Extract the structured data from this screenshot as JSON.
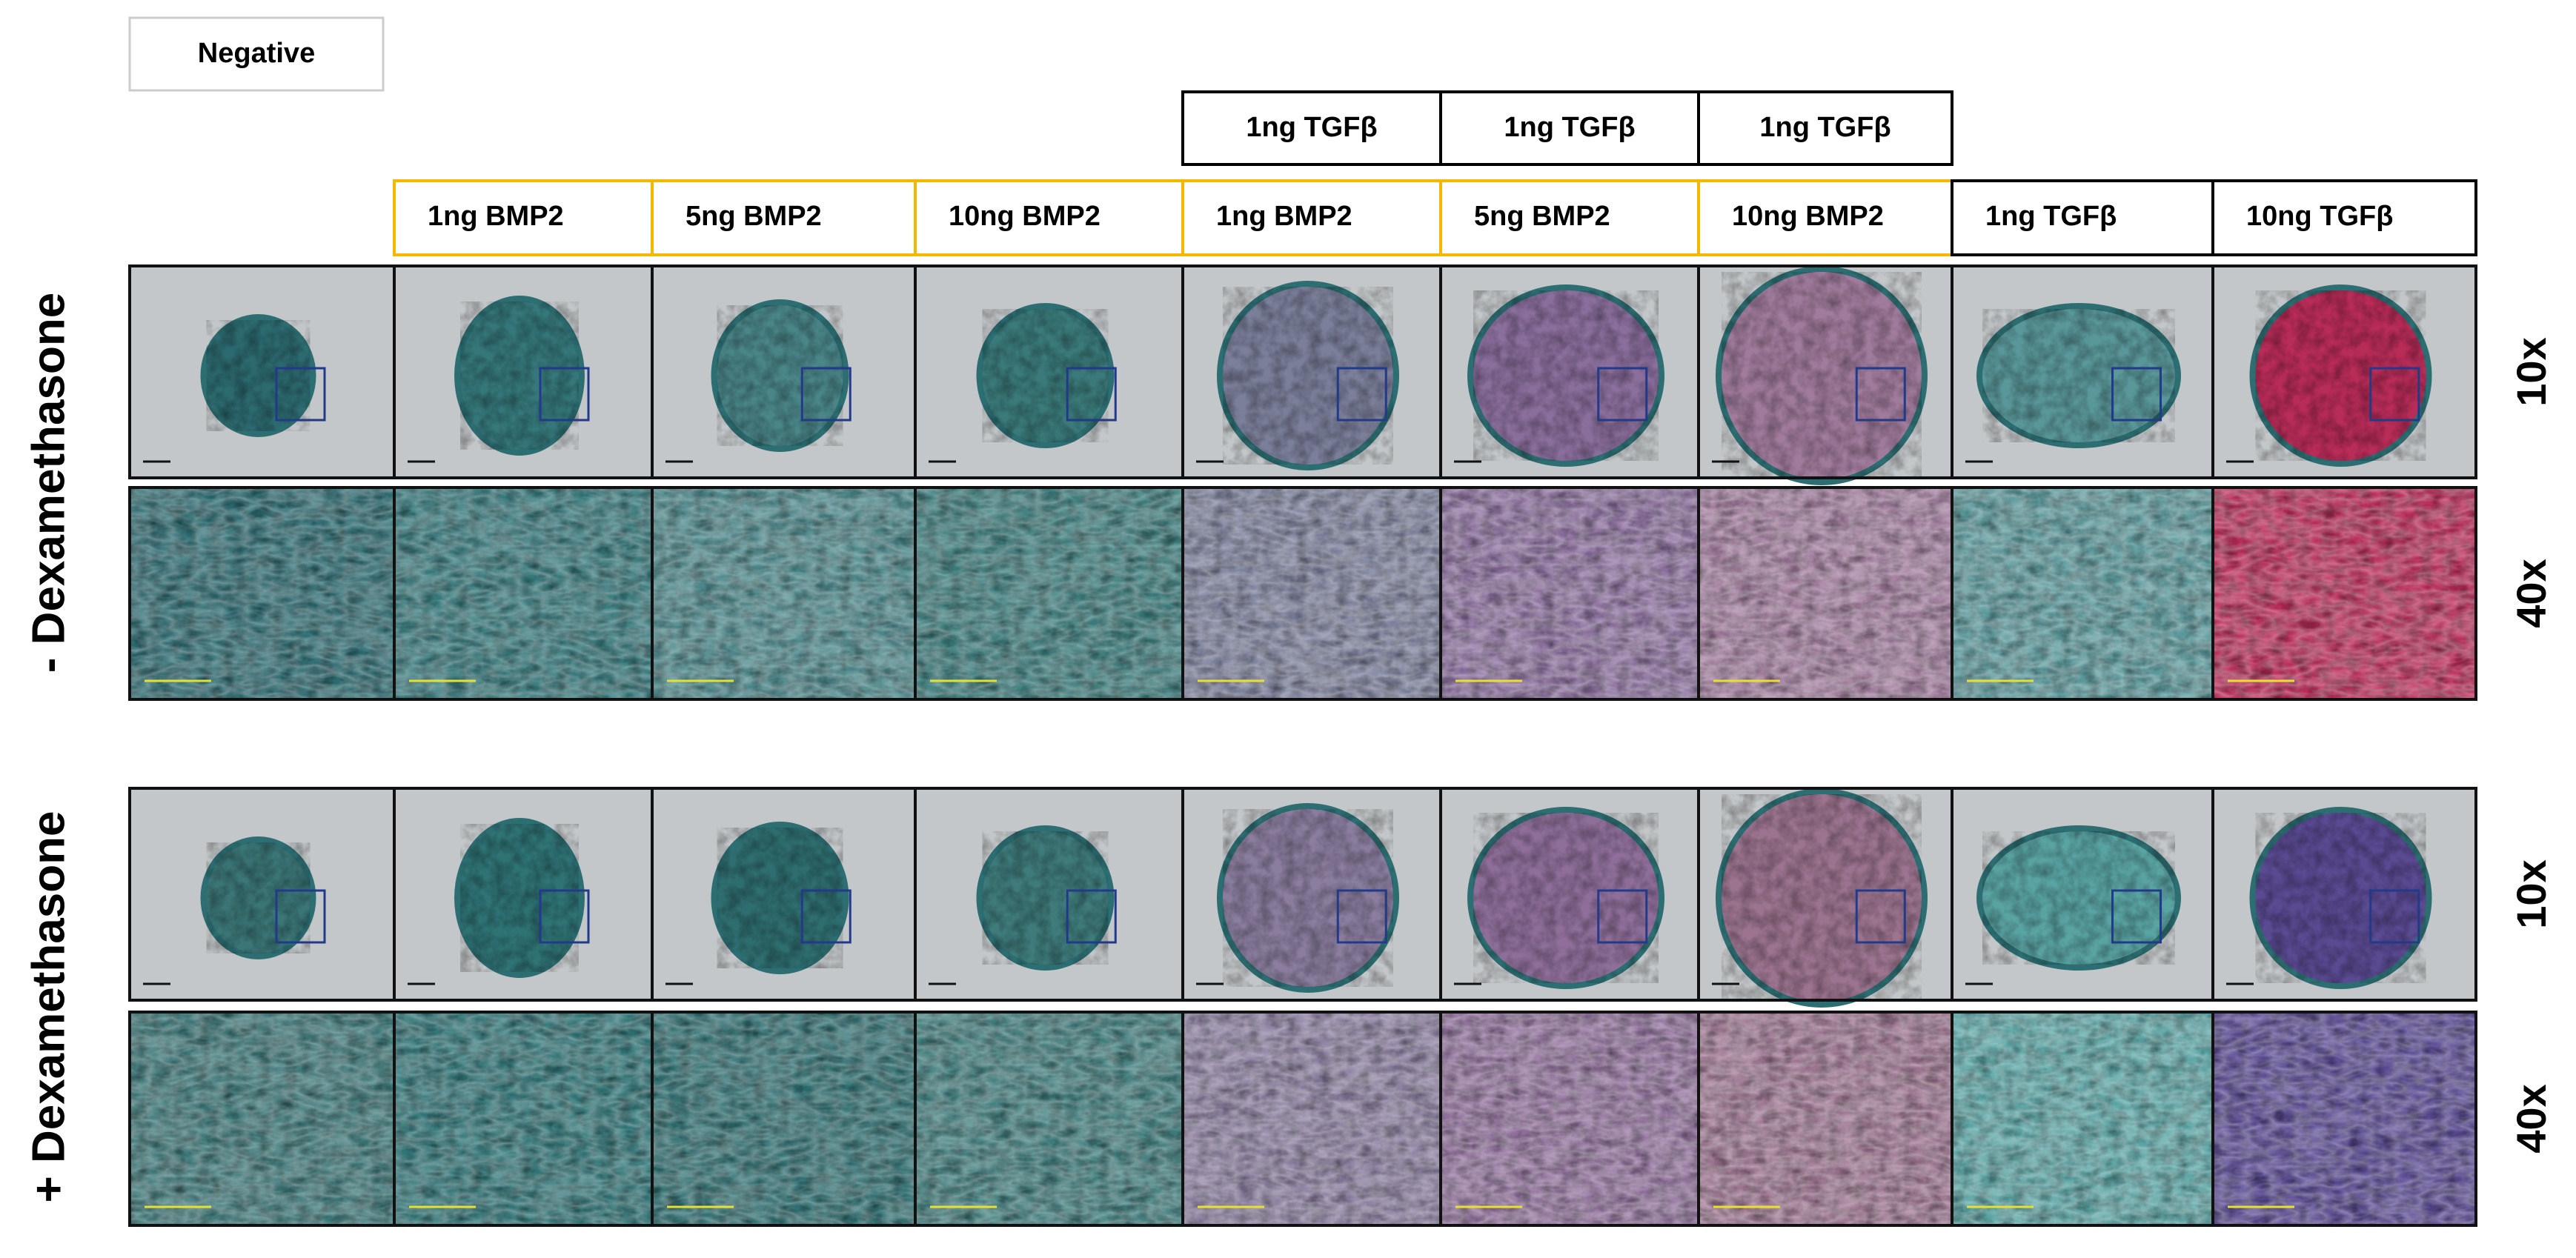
{
  "negative": "Negative",
  "tgf_header": [
    "1ng TGFβ",
    "1ng TGFβ",
    "1ng TGFβ"
  ],
  "columns": [
    "1ng BMP2",
    "5ng BMP2",
    "10ng BMP2",
    "1ng BMP2",
    "5ng BMP2",
    "10ng BMP2",
    "1ng TGFβ",
    "10ng TGFβ"
  ],
  "groups": [
    {
      "label": "- Dexamethasone",
      "magnifications": [
        "10x",
        "40x"
      ]
    },
    {
      "label": "+ Dexamethasone",
      "magnifications": [
        "10x",
        "40x"
      ]
    }
  ]
}
